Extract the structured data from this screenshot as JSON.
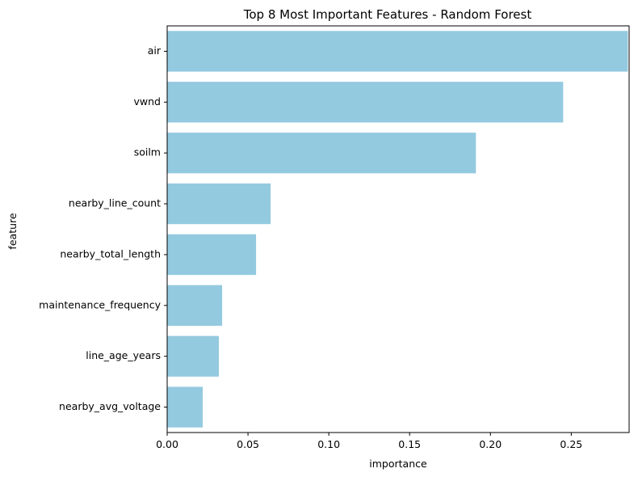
{
  "chart_data": {
    "type": "bar",
    "orientation": "horizontal",
    "title": "Top 8 Most Important Features - Random Forest",
    "xlabel": "importance",
    "ylabel": "feature",
    "categories": [
      "air",
      "vwnd",
      "soilm",
      "nearby_line_count",
      "nearby_total_length",
      "maintenance_frequency",
      "line_age_years",
      "nearby_avg_voltage"
    ],
    "values": [
      0.285,
      0.245,
      0.191,
      0.064,
      0.055,
      0.034,
      0.032,
      0.022
    ],
    "xlim": [
      0,
      0.2858
    ],
    "xticks": [
      0.0,
      0.05,
      0.1,
      0.15,
      0.2,
      0.25
    ],
    "xtick_labels": [
      "0.00",
      "0.05",
      "0.10",
      "0.15",
      "0.20",
      "0.25"
    ],
    "bar_color": "#94cae0",
    "grid": false
  }
}
